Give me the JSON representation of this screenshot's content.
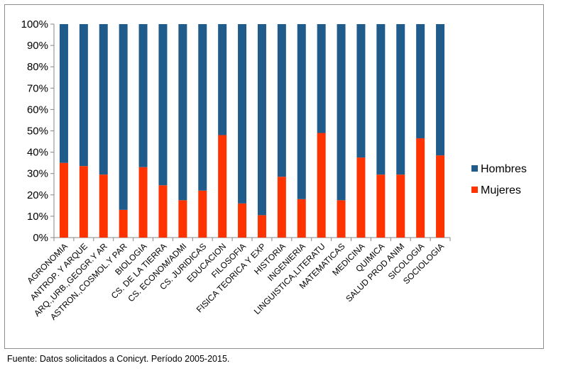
{
  "chart_data": {
    "type": "bar",
    "stacked": "percent",
    "categories": [
      "AGRONOMIA",
      "ANTROP. Y ARQUE",
      "ARQ.,URB.,GEOGR.Y AR",
      "ASTRON.,COSMOL.Y PAR",
      "BIOLOGIA",
      "CS. DE LA TIERRA",
      "CS. ECONOM/ADMI",
      "CS. JURIDICAS",
      "EDUCACION",
      "FILOSOFIA",
      "FISICA TEORICA Y EXP",
      "HISTORIA",
      "INGENIERIA",
      "LINGUISTICA,LITERATU",
      "MATEMATICAS",
      "MEDICINA",
      "QUIMICA",
      "SALUD PROD ANIM",
      "SICOLOGIA",
      "SOCIOLOGIA"
    ],
    "series": [
      {
        "name": "Mujeres",
        "color": "#ff3300",
        "values": [
          35,
          33.5,
          29.5,
          13,
          33,
          24.5,
          17.5,
          22,
          48,
          16,
          10.5,
          28.5,
          18,
          49,
          17.5,
          37.5,
          29.5,
          29.5,
          46.5,
          38.5
        ]
      },
      {
        "name": "Hombres",
        "color": "#1f5c8c",
        "values": [
          65,
          66.5,
          70.5,
          87,
          67,
          75.5,
          82.5,
          78,
          52,
          84,
          89.5,
          71.5,
          82,
          51,
          82.5,
          62.5,
          70.5,
          70.5,
          53.5,
          61.5
        ]
      }
    ],
    "yticks": [
      "0%",
      "10%",
      "20%",
      "30%",
      "40%",
      "50%",
      "60%",
      "70%",
      "80%",
      "90%",
      "100%"
    ],
    "ylim": [
      0,
      100
    ],
    "grid": false,
    "legend": {
      "position": "right",
      "entries": [
        "Hombres",
        "Mujeres"
      ]
    }
  },
  "source_note": "Fuente:  Datos solicitados a Conicyt. Período  2005-2015."
}
